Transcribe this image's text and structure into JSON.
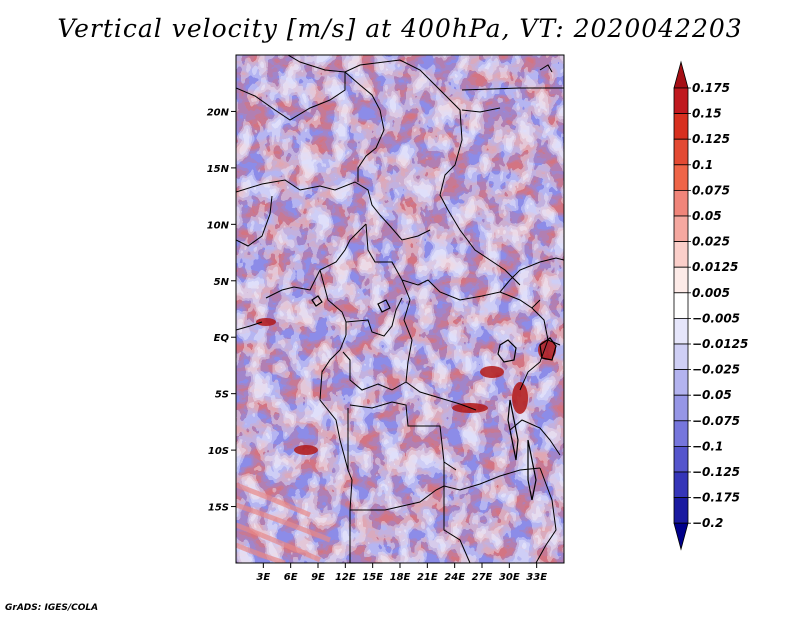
{
  "title": "Vertical velocity [m/s] at 400hPa, VT: 2020042203",
  "credit": "GrADS: IGES/COLA",
  "map": {
    "lon_range": [
      0,
      36
    ],
    "lat_range": [
      -20,
      25
    ],
    "x_ticks": [
      "3E",
      "6E",
      "9E",
      "12E",
      "15E",
      "18E",
      "21E",
      "24E",
      "27E",
      "30E",
      "33E"
    ],
    "x_tick_values": [
      3,
      6,
      9,
      12,
      15,
      18,
      21,
      24,
      27,
      30,
      33
    ],
    "y_ticks": [
      "20N",
      "15N",
      "10N",
      "5N",
      "EQ",
      "5S",
      "10S",
      "15S"
    ],
    "y_tick_values": [
      20,
      15,
      10,
      5,
      0,
      -5,
      -10,
      -15
    ]
  },
  "colorbar": {
    "labels": [
      "0.175",
      "0.15",
      "0.125",
      "0.1",
      "0.075",
      "0.05",
      "0.025",
      "0.0125",
      "0.005",
      "−0.005",
      "−0.0125",
      "−0.025",
      "−0.05",
      "−0.075",
      "−0.1",
      "−0.125",
      "−0.175",
      "−0.2"
    ],
    "colors": [
      "#a50f15",
      "#c0191f",
      "#d7301f",
      "#e34a33",
      "#ef6548",
      "#f0857a",
      "#f5a8a0",
      "#fbcfca",
      "#fdebe8",
      "#ffffff",
      "#e6e6fb",
      "#cfcff5",
      "#b3b3ef",
      "#9696e6",
      "#7676dc",
      "#5555cc",
      "#3535b8",
      "#1a1aa0",
      "#00008b"
    ]
  },
  "chart_data": {
    "type": "heatmap",
    "title": "Vertical velocity [m/s] at 400hPa, VT: 2020042203",
    "variable": "Vertical velocity",
    "units": "m/s",
    "level": "400hPa",
    "valid_time": "2020042203",
    "x_label_ticks": [
      "3E",
      "6E",
      "9E",
      "12E",
      "15E",
      "18E",
      "21E",
      "24E",
      "27E",
      "30E",
      "33E"
    ],
    "y_label_ticks": [
      "20N",
      "15N",
      "10N",
      "5N",
      "EQ",
      "5S",
      "10S",
      "15S"
    ],
    "xlim": [
      0,
      36
    ],
    "ylim": [
      -20,
      25
    ],
    "contour_levels": [
      -0.2,
      -0.175,
      -0.125,
      -0.1,
      -0.075,
      -0.05,
      -0.025,
      -0.0125,
      -0.005,
      0.005,
      0.0125,
      0.025,
      0.05,
      0.075,
      0.1,
      0.125,
      0.15,
      0.175
    ],
    "colormap": "blue (negative) to white to red (positive)"
  }
}
